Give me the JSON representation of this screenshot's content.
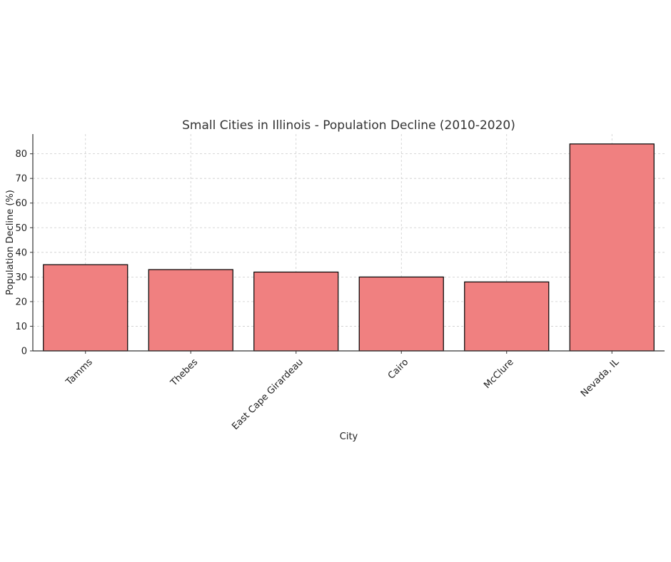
{
  "chart_data": {
    "type": "bar",
    "title": "Small Cities in Illinois - Population Decline (2010-2020)",
    "xlabel": "City",
    "ylabel": "Population Decline (%)",
    "categories": [
      "Tamms",
      "Thebes",
      "East Cape Girardeau",
      "Cairo",
      "McClure",
      "Nevada, IL"
    ],
    "values": [
      35,
      33,
      32,
      30,
      28,
      84
    ],
    "ylim": [
      0,
      88
    ],
    "yticks": [
      0,
      10,
      20,
      30,
      40,
      50,
      60,
      70,
      80
    ],
    "grid": true,
    "bar_color": "#f08080",
    "edge_color": "#000000"
  }
}
